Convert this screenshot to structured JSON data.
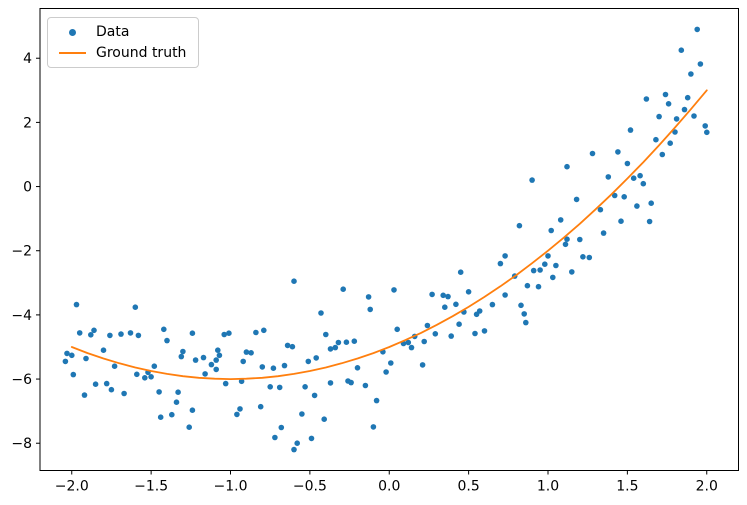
{
  "legend": {
    "items": [
      {
        "label": "Data",
        "marker": "dot",
        "color": "#1f77b4"
      },
      {
        "label": "Ground truth",
        "marker": "line",
        "color": "#ff7f0e"
      }
    ],
    "position": "upper left"
  },
  "colors": {
    "scatter": "#1f77b4",
    "line": "#ff7f0e",
    "spine": "#000000",
    "background": "#ffffff"
  },
  "chart_data": {
    "type": "scatter",
    "title": "",
    "xlabel": "",
    "ylabel": "",
    "grid": false,
    "legend_position": "upper left",
    "xlim": [
      -2.2,
      2.2
    ],
    "ylim": [
      -8.85,
      5.55
    ],
    "xticks": [
      -2.0,
      -1.5,
      -1.0,
      -0.5,
      0.0,
      0.5,
      1.0,
      1.5,
      2.0
    ],
    "xtick_labels": [
      "−2.0",
      "−1.5",
      "−1.0",
      "−0.5",
      "0.0",
      "0.5",
      "1.0",
      "1.5",
      "2.0"
    ],
    "yticks": [
      -8,
      -6,
      -4,
      -2,
      0,
      2,
      4
    ],
    "ytick_labels": [
      "−8",
      "−6",
      "−4",
      "−2",
      "0",
      "2",
      "4"
    ],
    "series": [
      {
        "name": "Data",
        "type": "scatter",
        "color": "#1f77b4",
        "points": [
          [
            1.94,
            4.9
          ],
          [
            1.84,
            4.25
          ],
          [
            1.96,
            3.82
          ],
          [
            1.9,
            3.51
          ],
          [
            1.88,
            2.77
          ],
          [
            1.74,
            2.87
          ],
          [
            1.76,
            2.58
          ],
          [
            1.62,
            2.73
          ],
          [
            1.86,
            2.4
          ],
          [
            1.7,
            2.18
          ],
          [
            1.92,
            2.2
          ],
          [
            1.81,
            2.11
          ],
          [
            1.99,
            1.89
          ],
          [
            2.0,
            1.69
          ],
          [
            1.52,
            1.76
          ],
          [
            1.8,
            1.7
          ],
          [
            1.68,
            1.46
          ],
          [
            1.77,
            1.35
          ],
          [
            1.72,
            1.0
          ],
          [
            1.44,
            1.08
          ],
          [
            1.28,
            1.03
          ],
          [
            1.5,
            0.72
          ],
          [
            1.12,
            0.62
          ],
          [
            0.9,
            0.2
          ],
          [
            1.38,
            0.3
          ],
          [
            1.54,
            0.26
          ],
          [
            1.58,
            0.34
          ],
          [
            1.6,
            0.09
          ],
          [
            1.18,
            -0.4
          ],
          [
            1.42,
            -0.28
          ],
          [
            1.48,
            -0.32
          ],
          [
            1.56,
            -0.61
          ],
          [
            1.65,
            -0.52
          ],
          [
            1.08,
            -1.04
          ],
          [
            0.82,
            -1.22
          ],
          [
            1.02,
            -1.37
          ],
          [
            1.33,
            -0.72
          ],
          [
            1.64,
            -1.09
          ],
          [
            1.46,
            -1.08
          ],
          [
            1.35,
            -1.45
          ],
          [
            1.12,
            -1.64
          ],
          [
            1.2,
            -1.65
          ],
          [
            1.11,
            -1.8
          ],
          [
            1.26,
            -2.21
          ],
          [
            1.22,
            -2.19
          ],
          [
            1.0,
            -2.16
          ],
          [
            0.98,
            -2.42
          ],
          [
            1.05,
            -2.46
          ],
          [
            0.91,
            -2.62
          ],
          [
            0.95,
            -2.6
          ],
          [
            1.15,
            -2.66
          ],
          [
            0.79,
            -2.79
          ],
          [
            1.03,
            -2.83
          ],
          [
            0.87,
            -3.09
          ],
          [
            0.94,
            -3.12
          ],
          [
            0.73,
            -2.16
          ],
          [
            0.73,
            -3.38
          ],
          [
            0.83,
            -3.7
          ],
          [
            0.85,
            -3.97
          ],
          [
            0.86,
            -4.24
          ],
          [
            -0.6,
            -2.95
          ],
          [
            -0.29,
            -3.2
          ],
          [
            -0.43,
            -3.94
          ],
          [
            -0.13,
            -3.44
          ],
          [
            -0.12,
            -3.83
          ],
          [
            0.03,
            -3.22
          ],
          [
            0.27,
            -3.36
          ],
          [
            0.34,
            -3.39
          ],
          [
            0.37,
            -3.43
          ],
          [
            0.45,
            -2.67
          ],
          [
            0.35,
            -3.76
          ],
          [
            0.42,
            -3.67
          ],
          [
            0.47,
            -3.91
          ],
          [
            0.57,
            -3.88
          ],
          [
            0.55,
            -3.98
          ],
          [
            0.65,
            -3.68
          ],
          [
            0.5,
            -3.28
          ],
          [
            0.7,
            -2.4
          ],
          [
            -1.97,
            -3.68
          ],
          [
            -1.6,
            -3.76
          ],
          [
            -1.95,
            -4.56
          ],
          [
            -1.88,
            -4.62
          ],
          [
            -1.86,
            -4.48
          ],
          [
            -1.76,
            -4.64
          ],
          [
            -1.69,
            -4.6
          ],
          [
            -1.63,
            -4.56
          ],
          [
            -1.58,
            -4.64
          ],
          [
            -1.42,
            -4.45
          ],
          [
            -1.4,
            -4.8
          ],
          [
            -1.24,
            -4.57
          ],
          [
            -1.04,
            -4.61
          ],
          [
            -1.01,
            -4.57
          ],
          [
            -0.84,
            -4.55
          ],
          [
            -0.79,
            -4.48
          ],
          [
            -2.03,
            -5.2
          ],
          [
            -2.0,
            -5.26
          ],
          [
            -2.04,
            -5.45
          ],
          [
            -1.91,
            -5.36
          ],
          [
            -1.8,
            -5.1
          ],
          [
            -1.73,
            -5.6
          ],
          [
            -1.99,
            -5.86
          ],
          [
            -1.92,
            -6.5
          ],
          [
            -1.85,
            -6.16
          ],
          [
            -1.78,
            -6.14
          ],
          [
            -1.75,
            -6.33
          ],
          [
            -1.67,
            -6.45
          ],
          [
            -1.59,
            -5.85
          ],
          [
            -1.54,
            -5.96
          ],
          [
            -1.52,
            -5.79
          ],
          [
            -1.5,
            -5.93
          ],
          [
            -1.48,
            -5.6
          ],
          [
            -1.31,
            -5.3
          ],
          [
            -1.3,
            -5.14
          ],
          [
            -1.22,
            -5.41
          ],
          [
            -1.17,
            -5.33
          ],
          [
            -1.12,
            -5.55
          ],
          [
            -1.09,
            -5.41
          ],
          [
            -1.08,
            -5.1
          ],
          [
            -1.07,
            -5.26
          ],
          [
            -1.16,
            -5.84
          ],
          [
            -1.09,
            -5.7
          ],
          [
            -1.03,
            -6.14
          ],
          [
            -0.93,
            -6.07
          ],
          [
            -0.92,
            -5.45
          ],
          [
            -0.9,
            -5.16
          ],
          [
            -0.87,
            -5.18
          ],
          [
            -0.8,
            -5.62
          ],
          [
            -1.45,
            -6.4
          ],
          [
            -1.33,
            -6.41
          ],
          [
            -1.34,
            -6.72
          ],
          [
            -1.44,
            -7.19
          ],
          [
            -1.37,
            -7.11
          ],
          [
            -1.26,
            -7.5
          ],
          [
            -1.24,
            -6.97
          ],
          [
            -0.94,
            -6.93
          ],
          [
            -0.96,
            -7.1
          ],
          [
            -0.81,
            -6.86
          ],
          [
            -0.4,
            -4.61
          ],
          [
            -0.22,
            -4.82
          ],
          [
            -0.64,
            -4.95
          ],
          [
            -0.61,
            -4.99
          ],
          [
            -0.37,
            -5.06
          ],
          [
            -0.34,
            -5.02
          ],
          [
            -0.32,
            -4.86
          ],
          [
            -0.27,
            -4.85
          ],
          [
            -0.46,
            -5.34
          ],
          [
            -0.51,
            -5.45
          ],
          [
            -0.66,
            -5.58
          ],
          [
            -0.73,
            -5.66
          ],
          [
            -0.75,
            -6.24
          ],
          [
            -0.69,
            -6.26
          ],
          [
            -0.53,
            -6.24
          ],
          [
            -0.47,
            -6.51
          ],
          [
            -0.37,
            -6.12
          ],
          [
            -0.26,
            -6.06
          ],
          [
            -0.24,
            -6.11
          ],
          [
            -0.2,
            -5.65
          ],
          [
            -0.15,
            -6.2
          ],
          [
            -0.08,
            -6.67
          ],
          [
            -0.55,
            -7.09
          ],
          [
            -0.41,
            -7.25
          ],
          [
            -0.68,
            -7.51
          ],
          [
            -0.1,
            -7.49
          ],
          [
            -0.72,
            -7.82
          ],
          [
            -0.49,
            -7.85
          ],
          [
            -0.58,
            -8.0
          ],
          [
            -0.6,
            -8.2
          ],
          [
            -0.04,
            -5.15
          ],
          [
            0.01,
            -5.5
          ],
          [
            -0.02,
            -5.78
          ],
          [
            0.09,
            -4.89
          ],
          [
            0.12,
            -4.86
          ],
          [
            0.14,
            -5.02
          ],
          [
            0.16,
            -4.67
          ],
          [
            0.22,
            -4.83
          ],
          [
            0.29,
            -4.59
          ],
          [
            0.39,
            -4.66
          ],
          [
            0.21,
            -5.56
          ],
          [
            0.54,
            -4.58
          ],
          [
            0.6,
            -4.5
          ],
          [
            0.05,
            -4.45
          ],
          [
            0.24,
            -4.33
          ],
          [
            0.44,
            -4.29
          ]
        ]
      },
      {
        "name": "Ground truth",
        "type": "line",
        "color": "#ff7f0e",
        "points": [
          [
            -2.0,
            -5.0
          ],
          [
            -1.9,
            -5.19
          ],
          [
            -1.8,
            -5.36
          ],
          [
            -1.7,
            -5.51
          ],
          [
            -1.6,
            -5.64
          ],
          [
            -1.5,
            -5.75
          ],
          [
            -1.4,
            -5.84
          ],
          [
            -1.3,
            -5.91
          ],
          [
            -1.2,
            -5.96
          ],
          [
            -1.1,
            -5.99
          ],
          [
            -1.0,
            -6.0
          ],
          [
            -0.9,
            -5.99
          ],
          [
            -0.8,
            -5.96
          ],
          [
            -0.7,
            -5.91
          ],
          [
            -0.6,
            -5.84
          ],
          [
            -0.5,
            -5.75
          ],
          [
            -0.4,
            -5.64
          ],
          [
            -0.3,
            -5.51
          ],
          [
            -0.2,
            -5.36
          ],
          [
            -0.1,
            -5.19
          ],
          [
            0.0,
            -5.0
          ],
          [
            0.1,
            -4.79
          ],
          [
            0.2,
            -4.56
          ],
          [
            0.3,
            -4.31
          ],
          [
            0.4,
            -4.04
          ],
          [
            0.5,
            -3.75
          ],
          [
            0.6,
            -3.44
          ],
          [
            0.7,
            -3.11
          ],
          [
            0.8,
            -2.76
          ],
          [
            0.9,
            -2.39
          ],
          [
            1.0,
            -2.0
          ],
          [
            1.1,
            -1.59
          ],
          [
            1.2,
            -1.16
          ],
          [
            1.3,
            -0.71
          ],
          [
            1.4,
            -0.24
          ],
          [
            1.5,
            0.25
          ],
          [
            1.6,
            0.76
          ],
          [
            1.7,
            1.29
          ],
          [
            1.8,
            1.84
          ],
          [
            1.9,
            2.41
          ],
          [
            2.0,
            3.0
          ]
        ]
      }
    ]
  }
}
